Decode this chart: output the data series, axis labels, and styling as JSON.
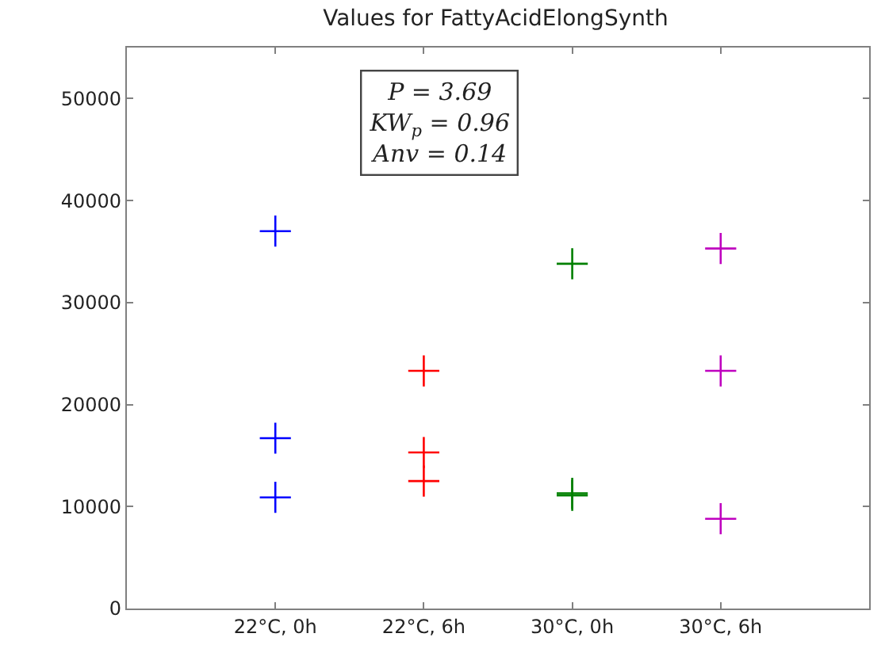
{
  "chart_data": {
    "type": "scatter",
    "title": "Values for FattyAcidElongSynth",
    "categories": [
      "22°C, 0h",
      "22°C, 6h",
      "30°C, 0h",
      "30°C, 6h"
    ],
    "series": [
      {
        "color": "#0000ff",
        "x": [
          "22°C, 0h",
          "22°C, 0h",
          "22°C, 0h"
        ],
        "values": [
          37000,
          16700,
          10900
        ]
      },
      {
        "color": "#ff0000",
        "x": [
          "22°C, 6h",
          "22°C, 6h",
          "22°C, 6h"
        ],
        "values": [
          23300,
          15300,
          12500
        ]
      },
      {
        "color": "#008000",
        "x": [
          "30°C, 0h",
          "30°C, 0h",
          "30°C, 0h"
        ],
        "values": [
          33800,
          11300,
          11100
        ]
      },
      {
        "color": "#bf00bf",
        "x": [
          "30°C, 6h",
          "30°C, 6h",
          "30°C, 6h"
        ],
        "values": [
          35300,
          23300,
          8800
        ]
      }
    ],
    "ylim": [
      0,
      55000
    ],
    "yticks": [
      0,
      10000,
      20000,
      30000,
      40000,
      50000
    ],
    "marker": "cross",
    "annotations": [
      "P = 3.69\nKW$_{p}$ = 0.96\nAnv = 0.14"
    ]
  }
}
